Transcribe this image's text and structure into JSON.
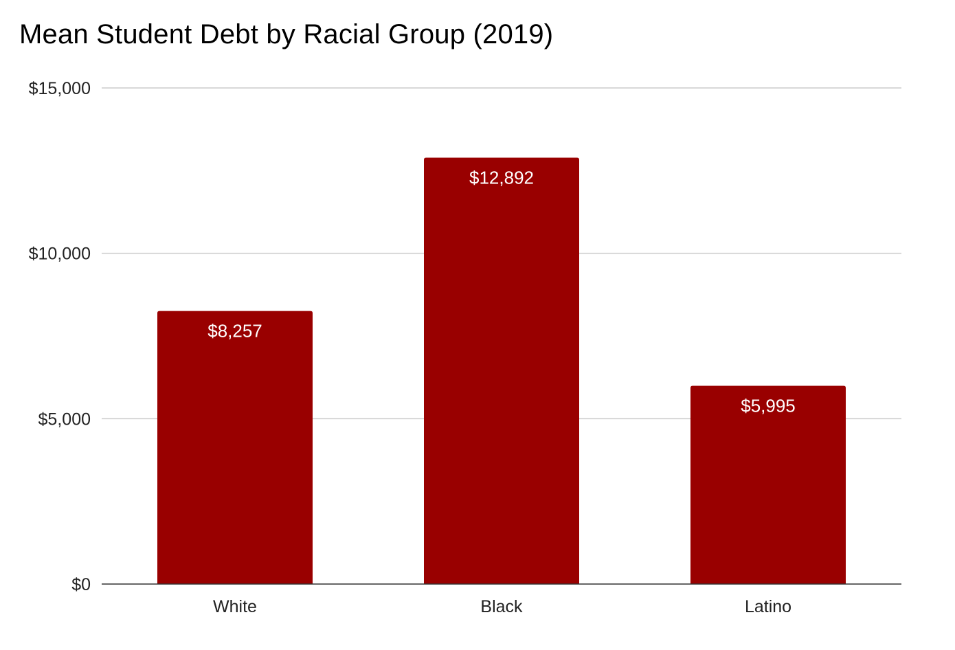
{
  "chart_data": {
    "type": "bar",
    "title": "Mean Student Debt by Racial Group (2019)",
    "xlabel": "",
    "ylabel": "",
    "categories": [
      "White",
      "Black",
      "Latino"
    ],
    "values": [
      8257,
      12892,
      5995
    ],
    "data_labels": [
      "$8,257",
      "$12,892",
      "$5,995"
    ],
    "ylim": [
      0,
      15000
    ],
    "yticks": [
      0,
      5000,
      10000,
      15000
    ],
    "ytick_labels": [
      "$0",
      "$5,000",
      "$10,000",
      "$15,000"
    ],
    "grid": true,
    "legend": "none",
    "bar_color": "#990000",
    "gridline_color": "#cccccc",
    "axis_color": "#333333"
  }
}
